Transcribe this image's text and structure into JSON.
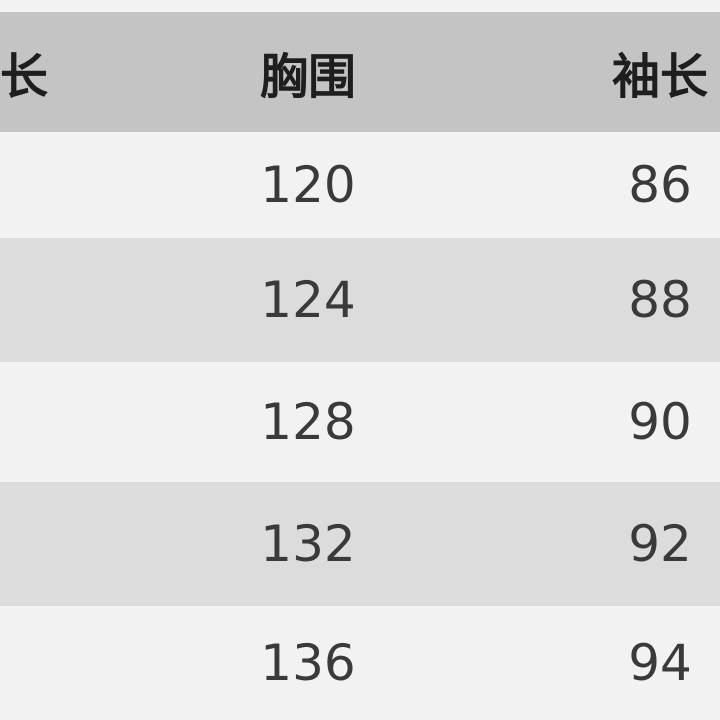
{
  "table": {
    "headers": [
      "长",
      "胸围",
      "袖长"
    ],
    "rows": [
      [
        "",
        "120",
        "86"
      ],
      [
        "",
        "124",
        "88"
      ],
      [
        "",
        "128",
        "90"
      ],
      [
        "",
        "132",
        "92"
      ],
      [
        "",
        "136",
        "94"
      ]
    ]
  },
  "colors": {
    "header_bg": "#c4c4c4",
    "row_light": "#f2f2f2",
    "row_dark": "#dcdcdc"
  }
}
